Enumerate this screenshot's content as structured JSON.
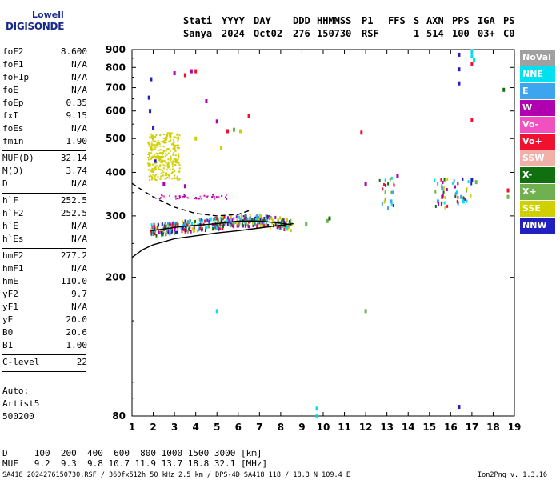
{
  "logo": {
    "line1": "Lowell",
    "line2": "DIGISONDE"
  },
  "header": {
    "labels": [
      {
        "text": "Stati",
        "x": 229
      },
      {
        "text": "YYYY",
        "x": 277
      },
      {
        "text": "DAY",
        "x": 317
      },
      {
        "text": "DDD",
        "x": 366
      },
      {
        "text": "HHMMSS",
        "x": 396
      },
      {
        "text": "P1",
        "x": 452
      },
      {
        "text": "FFS",
        "x": 485
      },
      {
        "text": "S",
        "x": 517
      },
      {
        "text": "AXN",
        "x": 533
      },
      {
        "text": "PPS",
        "x": 565
      },
      {
        "text": "IGA",
        "x": 597
      },
      {
        "text": "PS",
        "x": 629
      }
    ],
    "values": [
      {
        "text": "Sanya",
        "x": 229
      },
      {
        "text": "2024",
        "x": 277
      },
      {
        "text": "Oct02",
        "x": 317
      },
      {
        "text": "276",
        "x": 366
      },
      {
        "text": "150730",
        "x": 396
      },
      {
        "text": "RSF",
        "x": 452
      },
      {
        "text": "1",
        "x": 517
      },
      {
        "text": "514",
        "x": 533
      },
      {
        "text": "100",
        "x": 565
      },
      {
        "text": "03+",
        "x": 597
      },
      {
        "text": "C0",
        "x": 629
      }
    ]
  },
  "params": {
    "group1": [
      {
        "name": "foF2",
        "value": "8.600"
      },
      {
        "name": "foF1",
        "value": "N/A"
      },
      {
        "name": "foF1p",
        "value": "N/A"
      },
      {
        "name": "foE",
        "value": "N/A"
      },
      {
        "name": "foEp",
        "value": "0.35"
      },
      {
        "name": "fxI",
        "value": "9.15"
      },
      {
        "name": "foEs",
        "value": "N/A"
      },
      {
        "name": "fmin",
        "value": "1.90"
      }
    ],
    "group2": [
      {
        "name": "MUF(D)",
        "value": "32.14"
      },
      {
        "name": "M(D)",
        "value": "3.74"
      },
      {
        "name": "D",
        "value": "N/A"
      }
    ],
    "group3": [
      {
        "name": "h`F",
        "value": "252.5"
      },
      {
        "name": "h`F2",
        "value": "252.5"
      },
      {
        "name": "h`E",
        "value": "N/A"
      },
      {
        "name": "h`Es",
        "value": "N/A"
      }
    ],
    "group4": [
      {
        "name": "hmF2",
        "value": "277.2"
      },
      {
        "name": "hmF1",
        "value": "N/A"
      },
      {
        "name": "hmE",
        "value": "110.0"
      },
      {
        "name": "yF2",
        "value": "9.7"
      },
      {
        "name": "yF1",
        "value": "N/A"
      },
      {
        "name": "yE",
        "value": "20.0"
      },
      {
        "name": "B0",
        "value": "20.6"
      },
      {
        "name": "B1",
        "value": "1.00"
      }
    ],
    "group5": [
      {
        "name": "C-level",
        "value": "22"
      }
    ]
  },
  "autoscaling": {
    "line1": "Auto:",
    "line2": "Artist5",
    "line3": "500200"
  },
  "legend": [
    {
      "label": "NoVal",
      "color": "#a0a0a0"
    },
    {
      "label": "NNE",
      "color": "#00e0f0"
    },
    {
      "label": "E",
      "color": "#3da5f0"
    },
    {
      "label": "W",
      "color": "#b000b0"
    },
    {
      "label": "Vo-",
      "color": "#f050c0"
    },
    {
      "label": "Vo+",
      "color": "#f01030"
    },
    {
      "label": "SSW",
      "color": "#f0b0a8"
    },
    {
      "label": "X-",
      "color": "#107010"
    },
    {
      "label": "X+",
      "color": "#70b050"
    },
    {
      "label": "SSE",
      "color": "#d0d000"
    },
    {
      "label": "NNW",
      "color": "#2020c0"
    }
  ],
  "muf_table": {
    "d_row": "D     100  200  400  600  800 1000 1500 3000 [km]",
    "muf_row": "MUF   9.2  9.3  9.8 10.7 11.9 13.7 18.8 32.1 [MHz]"
  },
  "footer": {
    "left": "SA418_2024276150730.RSF / 360fx512h 50 kHz 2.5 km / DPS-4D SA418 118 / 18.3 N 109.4 E",
    "right": "Ion2Png v. 1.3.16"
  },
  "chart_data": {
    "type": "scatter",
    "title": "",
    "xlabel": "",
    "ylabel": "",
    "xlim": [
      1,
      19
    ],
    "ylim": [
      80,
      900
    ],
    "x_ticks": [
      1,
      2,
      3,
      4,
      5,
      6,
      7,
      8,
      9,
      10,
      11,
      12,
      13,
      14,
      15,
      16,
      17,
      18,
      19
    ],
    "y_ticks": [
      80,
      200,
      300,
      400,
      500,
      600,
      700,
      800,
      900
    ],
    "y_scale": "logarithmic",
    "grid": false,
    "trace_curves": [
      {
        "name": "",
        "style": "solid",
        "x": [
          1.0,
          1.5,
          2.0,
          3.0,
          4.0,
          5.0,
          6.0,
          7.0,
          8.0,
          8.6
        ],
        "y": [
          228,
          240,
          248,
          258,
          263,
          268,
          272,
          277,
          282,
          285
        ]
      },
      {
        "name": "",
        "style": "dashed",
        "x": [
          1.0,
          1.5,
          2.0,
          3.0,
          4.0,
          5.0,
          6.0,
          6.6
        ],
        "y": [
          372,
          355,
          340,
          318,
          305,
          300,
          303,
          312
        ]
      },
      {
        "name": "",
        "style": "solid",
        "x": [
          1.9,
          3.0,
          4.0,
          5.0,
          6.0,
          7.0,
          8.0,
          8.5
        ],
        "y": [
          272,
          278,
          282,
          285,
          290,
          290,
          286,
          283
        ]
      }
    ],
    "series": [
      {
        "name": "SSE",
        "color": "#d0d000",
        "points": [
          [
            1.8,
            420
          ],
          [
            1.9,
            470
          ],
          [
            2.0,
            500
          ],
          [
            2.2,
            480
          ],
          [
            2.4,
            430
          ],
          [
            2.6,
            500
          ],
          [
            2.8,
            510
          ],
          [
            3.0,
            470
          ],
          [
            2.1,
            410
          ],
          [
            2.3,
            440
          ],
          [
            2.7,
            420
          ],
          [
            3.1,
            430
          ],
          [
            4.0,
            500
          ],
          [
            5.2,
            470
          ],
          [
            6.1,
            525
          ],
          [
            8.0,
            280
          ],
          [
            8.5,
            285
          ]
        ]
      },
      {
        "name": "NNW",
        "color": "#2020c0",
        "points": [
          [
            1.8,
            655
          ],
          [
            1.9,
            740
          ],
          [
            1.85,
            600
          ],
          [
            2.0,
            535
          ],
          [
            2.1,
            430
          ],
          [
            16.4,
            870
          ],
          [
            16.4,
            790
          ],
          [
            16.4,
            720
          ],
          [
            16.4,
            85
          ],
          [
            17.0,
            380
          ]
        ]
      },
      {
        "name": "Vo+",
        "color": "#f01030",
        "points": [
          [
            3.5,
            760
          ],
          [
            4.0,
            780
          ],
          [
            5.5,
            525
          ],
          [
            6.5,
            580
          ],
          [
            11.8,
            520
          ],
          [
            17.0,
            565
          ],
          [
            17.0,
            820
          ],
          [
            18.7,
            355
          ],
          [
            15.6,
            340
          ]
        ]
      },
      {
        "name": "W",
        "color": "#b000b0",
        "points": [
          [
            3.0,
            770
          ],
          [
            3.8,
            780
          ],
          [
            4.5,
            640
          ],
          [
            5.0,
            560
          ],
          [
            2.5,
            370
          ],
          [
            3.5,
            365
          ],
          [
            13.5,
            390
          ],
          [
            12.0,
            370
          ]
        ]
      },
      {
        "name": "NNE",
        "color": "#00e0f0",
        "points": [
          [
            17.0,
            890
          ],
          [
            17.0,
            860
          ],
          [
            17.1,
            840
          ],
          [
            9.7,
            80
          ],
          [
            9.7,
            84
          ],
          [
            5.0,
            160
          ],
          [
            16.3,
            350
          ],
          [
            16.6,
            330
          ]
        ]
      },
      {
        "name": "E",
        "color": "#3da5f0",
        "points": [
          [
            15.4,
            330
          ],
          [
            15.6,
            360
          ],
          [
            13.2,
            330
          ],
          [
            16.5,
            340
          ]
        ]
      },
      {
        "name": "X+",
        "color": "#70b050",
        "points": [
          [
            9.2,
            285
          ],
          [
            10.2,
            290
          ],
          [
            5.8,
            530
          ],
          [
            17.2,
            375
          ],
          [
            18.7,
            340
          ],
          [
            12.0,
            160
          ]
        ]
      },
      {
        "name": "X-",
        "color": "#107010",
        "points": [
          [
            18.5,
            690
          ],
          [
            10.3,
            295
          ]
        ]
      }
    ]
  }
}
